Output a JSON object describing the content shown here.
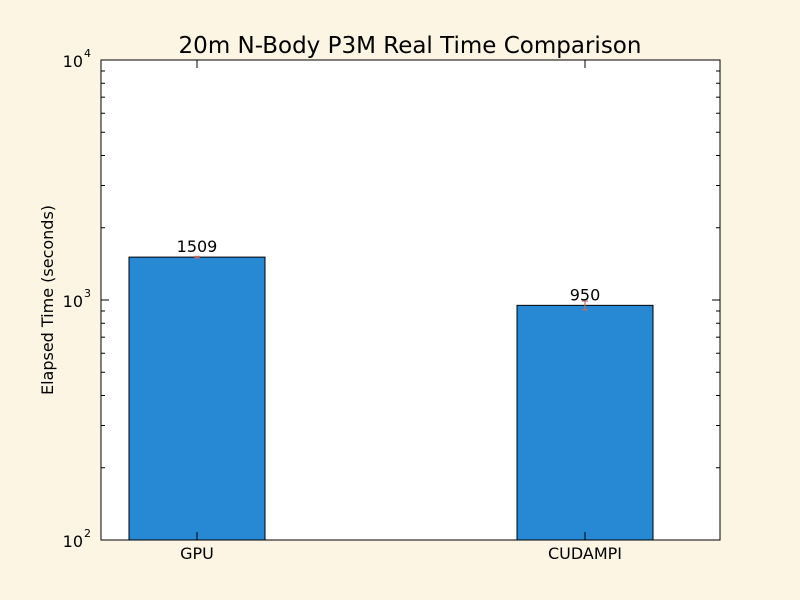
{
  "chart_data": {
    "type": "bar",
    "title": "20m N-Body P3M Real Time Comparison",
    "xlabel": "",
    "ylabel": "Elapsed Time (seconds)",
    "yscale": "log",
    "ylim": [
      100,
      10000
    ],
    "ytick_labels": [
      {
        "value": 100,
        "base": "10",
        "exp": "2"
      },
      {
        "value": 1000,
        "base": "10",
        "exp": "3"
      },
      {
        "value": 10000,
        "base": "10",
        "exp": "4"
      }
    ],
    "categories": [
      "GPU",
      "CUDAMPI"
    ],
    "values": [
      1509,
      950
    ],
    "value_labels": [
      "1509",
      "950"
    ],
    "errors": [
      10,
      40
    ],
    "bar_color": "#2789d3",
    "error_color": "#c07070",
    "background_color": "#fdf5e4",
    "plot_background": "#ffffff",
    "grid": false,
    "legend": "none"
  }
}
